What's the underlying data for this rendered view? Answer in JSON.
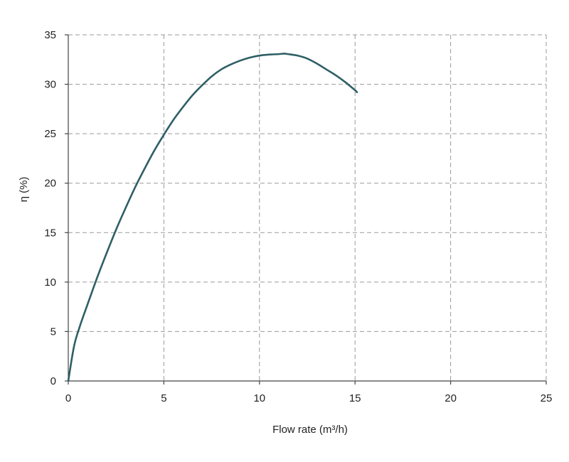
{
  "chart_data": {
    "type": "line",
    "title": "",
    "xlabel": "Flow rate (m³/h)",
    "ylabel": "η (%)",
    "xlim": [
      0,
      25
    ],
    "ylim": [
      0,
      35
    ],
    "x_ticks": [
      0,
      5,
      10,
      15,
      20,
      25
    ],
    "y_ticks": [
      0,
      5,
      10,
      15,
      20,
      25,
      30,
      35
    ],
    "grid": true,
    "legend": "none",
    "series": [
      {
        "color": "#2f5f66",
        "x": [
          0,
          0.3,
          0.6,
          1,
          1.5,
          2,
          2.5,
          3,
          3.5,
          4,
          4.5,
          5,
          5.5,
          6,
          6.5,
          7,
          7.5,
          8,
          8.5,
          9,
          9.5,
          10,
          10.5,
          11,
          11.3,
          11.5,
          12,
          12.5,
          13,
          13.5,
          14,
          14.5,
          15,
          15.1
        ],
        "values": [
          0,
          3.5,
          5.5,
          7.7,
          10.4,
          12.9,
          15.3,
          17.5,
          19.6,
          21.5,
          23.3,
          24.9,
          26.4,
          27.7,
          28.9,
          29.9,
          30.8,
          31.5,
          32.0,
          32.4,
          32.7,
          32.9,
          33.0,
          33.05,
          33.1,
          33.05,
          32.9,
          32.6,
          32.1,
          31.5,
          30.9,
          30.2,
          29.4,
          29.2
        ]
      }
    ]
  }
}
